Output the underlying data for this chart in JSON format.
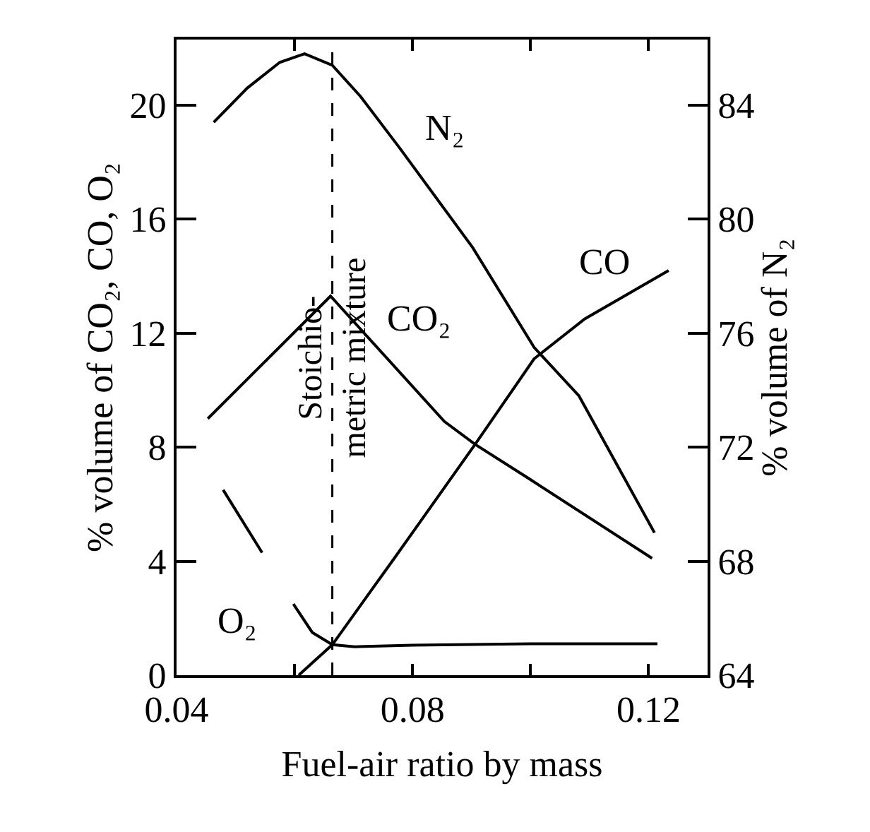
{
  "chart_data": {
    "type": "line",
    "xlabel": "Fuel-air ratio by mass",
    "ylabel": "% volume of CO₂, CO, O₂",
    "y2label": "% volume of N₂",
    "xlim": [
      0.04,
      0.13
    ],
    "xticks": [
      0.04,
      {
        "value": 0.06,
        "label": null
      },
      0.08,
      {
        "value": 0.1,
        "label": null
      },
      0.12
    ],
    "ylim": [
      0,
      22.3
    ],
    "yticks": [
      0,
      4,
      8,
      12,
      16,
      20
    ],
    "y2lim": [
      64,
      86.3
    ],
    "y2ticks": [
      64,
      68,
      72,
      76,
      80,
      84
    ],
    "legend": false,
    "marker": "none",
    "line_style": "solid",
    "series": [
      {
        "name": "N₂",
        "color": "#000000",
        "axis": "y2",
        "x": [
          0.0463,
          0.052,
          0.0575,
          0.0617,
          0.0664,
          0.0712,
          0.0778,
          0.0902,
          0.1006,
          0.1082,
          0.121
        ],
        "values": [
          83.4,
          84.6,
          85.5,
          85.8,
          85.4,
          84.3,
          82.5,
          79.0,
          75.5,
          73.8,
          69.0
        ]
      },
      {
        "name": "CO₂",
        "color": "#000000",
        "x": [
          0.0453,
          0.0661,
          0.0854,
          0.0906,
          0.0997,
          0.1206
        ],
        "values": [
          9.0,
          13.3,
          8.9,
          8.1,
          6.9,
          4.1
        ]
      },
      {
        "name": "CO",
        "color": "#000000",
        "x": [
          0.0607,
          0.0664,
          0.0769,
          0.0906,
          0.1006,
          0.1092,
          0.1234
        ],
        "values": [
          0,
          1.07,
          4.1,
          8.1,
          11.1,
          12.5,
          14.2
        ]
      },
      {
        "name": "O₂",
        "color": "#000000",
        "x": [
          0.0479,
          0.0545,
          0.057,
          0.0598,
          0.063,
          0.0664,
          0.0702,
          0.08,
          0.1,
          0.1215
        ],
        "values": [
          6.5,
          4.3,
          null,
          2.5,
          1.5,
          1.07,
          1.0,
          1.05,
          1.1,
          1.1
        ]
      }
    ],
    "ref_lines": [
      {
        "axis": "x",
        "value": 0.0664,
        "label": "Stoichio-\nmetric mixture",
        "color": "#000000",
        "line_style": "dashed"
      }
    ]
  }
}
